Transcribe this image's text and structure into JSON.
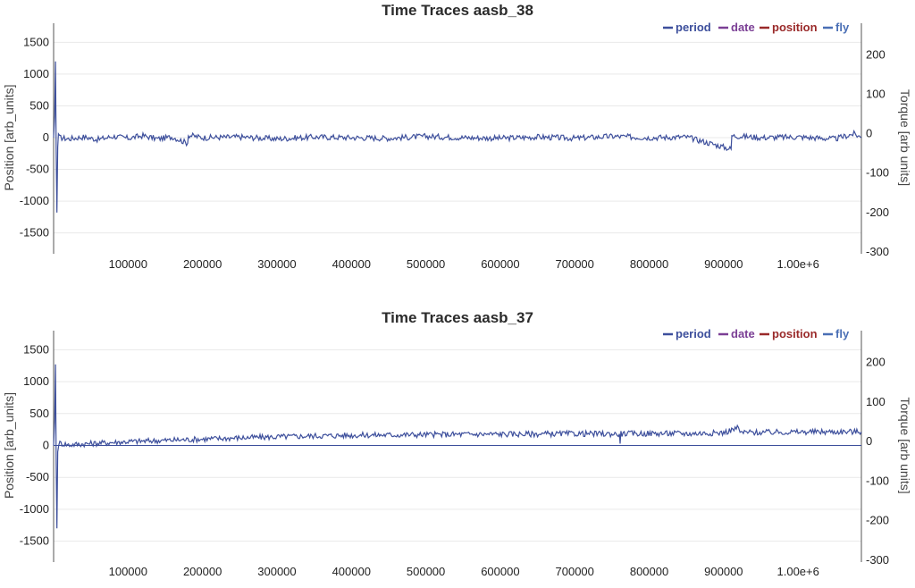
{
  "colors": {
    "period": "#3d4f9c",
    "date": "#7b3f95",
    "position": "#9a2a2a",
    "fly": "#4a6fb5"
  },
  "chart_data": [
    {
      "type": "line",
      "title": "Time Traces aasb_38",
      "ylabel": "Position [arb_units]",
      "y2label": "Torque [arb units]",
      "xlim": [
        0,
        1085000
      ],
      "ylim": [
        -1800,
        1800
      ],
      "y2lim": [
        -300,
        280
      ],
      "x_ticks": [
        "100000",
        "200000",
        "300000",
        "400000",
        "500000",
        "600000",
        "700000",
        "800000",
        "900000",
        "1.00e+6"
      ],
      "y_ticks": [
        "1500",
        "1000",
        "500",
        "0",
        "-500",
        "-1000",
        "-1500"
      ],
      "y2_ticks": [
        "200",
        "100",
        "0",
        "-100",
        "-200",
        "-300"
      ],
      "legend": [
        "period",
        "date",
        "position",
        "fly"
      ],
      "legend_position": "top-right",
      "series": [
        {
          "name": "period",
          "color": "#3d4f9c",
          "points": [
            [
              0,
              0
            ],
            [
              1500,
              350
            ],
            [
              2500,
              1200
            ],
            [
              3500,
              -250
            ],
            [
              4500,
              -1180
            ],
            [
              5500,
              -150
            ],
            [
              6500,
              60
            ],
            [
              8000,
              0
            ],
            [
              20000,
              -20
            ],
            [
              40000,
              10
            ],
            [
              60000,
              -30
            ],
            [
              80000,
              20
            ],
            [
              100000,
              -10
            ],
            [
              120000,
              30
            ],
            [
              140000,
              -20
            ],
            [
              160000,
              10
            ],
            [
              180000,
              -90
            ],
            [
              181000,
              40
            ],
            [
              200000,
              0
            ],
            [
              250000,
              10
            ],
            [
              300000,
              -20
            ],
            [
              350000,
              10
            ],
            [
              400000,
              0
            ],
            [
              450000,
              -10
            ],
            [
              500000,
              20
            ],
            [
              550000,
              0
            ],
            [
              600000,
              -10
            ],
            [
              650000,
              10
            ],
            [
              700000,
              -10
            ],
            [
              750000,
              20
            ],
            [
              800000,
              0
            ],
            [
              850000,
              10
            ],
            [
              910000,
              -180
            ],
            [
              911000,
              30
            ],
            [
              950000,
              0
            ],
            [
              1000000,
              10
            ],
            [
              1050000,
              -20
            ],
            [
              1075000,
              60
            ],
            [
              1085000,
              0
            ]
          ]
        }
      ]
    },
    {
      "type": "line",
      "title": "Time Traces aasb_37",
      "ylabel": "Position [arb_units]",
      "y2label": "Torque [arb units]",
      "xlim": [
        0,
        1085000
      ],
      "ylim": [
        -1800,
        1800
      ],
      "y2lim": [
        -300,
        280
      ],
      "x_ticks": [
        "100000",
        "200000",
        "300000",
        "400000",
        "500000",
        "600000",
        "700000",
        "800000",
        "900000",
        "1.00e+6"
      ],
      "y_ticks": [
        "1500",
        "1000",
        "500",
        "0",
        "-500",
        "-1000",
        "-1500"
      ],
      "y2_ticks": [
        "200",
        "100",
        "0",
        "-100",
        "-200",
        "-300"
      ],
      "legend": [
        "period",
        "date",
        "position",
        "fly"
      ],
      "legend_position": "top-right",
      "series": [
        {
          "name": "period",
          "color": "#3d4f9c",
          "points": [
            [
              0,
              0
            ],
            [
              1500,
              400
            ],
            [
              2500,
              1270
            ],
            [
              3500,
              -300
            ],
            [
              4500,
              -1300
            ],
            [
              5500,
              -100
            ],
            [
              7000,
              40
            ],
            [
              20000,
              10
            ],
            [
              50000,
              30
            ],
            [
              100000,
              60
            ],
            [
              150000,
              80
            ],
            [
              200000,
              100
            ],
            [
              250000,
              120
            ],
            [
              300000,
              135
            ],
            [
              350000,
              150
            ],
            [
              400000,
              160
            ],
            [
              450000,
              165
            ],
            [
              500000,
              170
            ],
            [
              550000,
              175
            ],
            [
              600000,
              178
            ],
            [
              650000,
              180
            ],
            [
              700000,
              185
            ],
            [
              760000,
              180
            ],
            [
              761000,
              30
            ],
            [
              762000,
              185
            ],
            [
              840000,
              190
            ],
            [
              850000,
              185
            ],
            [
              900000,
              200
            ],
            [
              920000,
              280
            ],
            [
              922000,
              205
            ],
            [
              950000,
              205
            ],
            [
              1000000,
              210
            ],
            [
              1050000,
              215
            ],
            [
              1085000,
              215
            ]
          ]
        }
      ]
    }
  ]
}
